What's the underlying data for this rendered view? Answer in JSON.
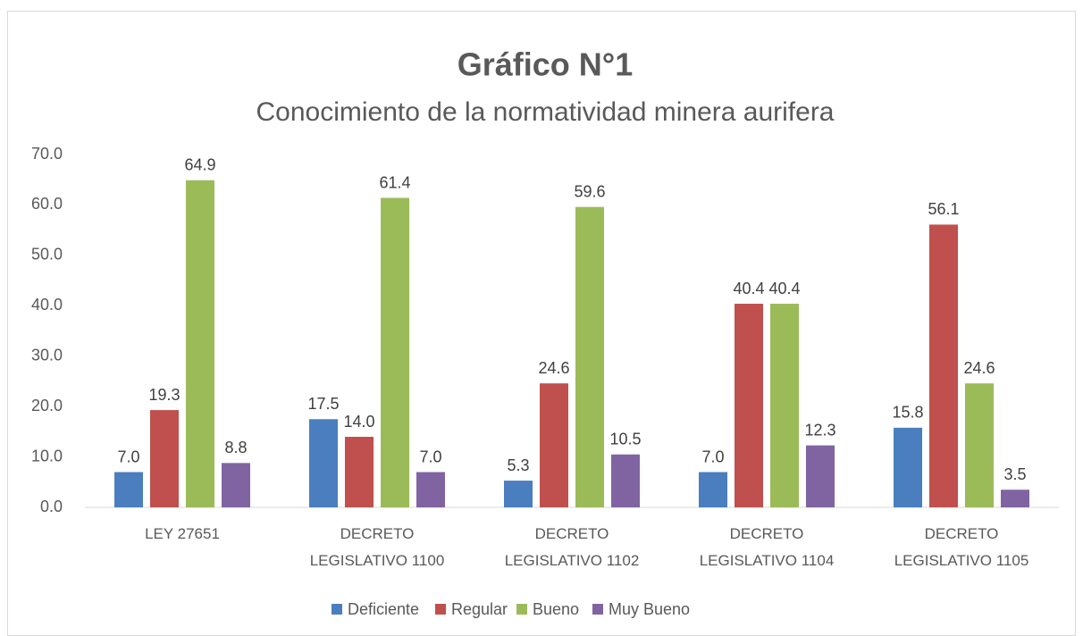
{
  "chart_data": {
    "type": "bar",
    "title": "Gráfico N°1",
    "subtitle": "Conocimiento de la normatividad minera aurifera",
    "categories": [
      "LEY 27651",
      "DECRETO LEGISLATIVO 1100",
      "DECRETO LEGISLATIVO 1102",
      "DECRETO LEGISLATIVO 1104",
      "DECRETO LEGISLATIVO 1105"
    ],
    "series": [
      {
        "name": "Deficiente",
        "color": "#4a7ebf",
        "values": [
          7.0,
          17.5,
          5.3,
          7.0,
          15.8
        ],
        "value_labels": [
          "7.0",
          "17.5",
          "5.3",
          "7.0",
          "15.8"
        ]
      },
      {
        "name": "Regular",
        "color": "#c0504d",
        "values": [
          19.3,
          14.0,
          24.6,
          40.4,
          56.1
        ],
        "value_labels": [
          "19.3",
          "14.0",
          "24.6",
          "40.4",
          "56.1"
        ]
      },
      {
        "name": "Bueno",
        "color": "#9bbb59",
        "values": [
          64.9,
          61.4,
          59.6,
          40.4,
          24.6
        ],
        "value_labels": [
          "64.9",
          "61.4",
          "59.6",
          "40.4",
          "24.6"
        ]
      },
      {
        "name": "Muy Bueno",
        "color": "#8064a2",
        "values": [
          8.8,
          7.0,
          10.5,
          12.3,
          3.5
        ],
        "value_labels": [
          "8.8",
          "7.0",
          "10.5",
          "12.3",
          "3.5"
        ]
      }
    ],
    "ylim": [
      0,
      70
    ],
    "yticks": [
      {
        "value": 0,
        "label": "0.0"
      },
      {
        "value": 10,
        "label": "10.0"
      },
      {
        "value": 20,
        "label": "20.0"
      },
      {
        "value": 30,
        "label": "30.0"
      },
      {
        "value": 40,
        "label": "40.0"
      },
      {
        "value": 50,
        "label": "50.0"
      },
      {
        "value": 60,
        "label": "60.0"
      },
      {
        "value": 70,
        "label": "70.0"
      }
    ],
    "grid": false,
    "legend": "bottom"
  }
}
